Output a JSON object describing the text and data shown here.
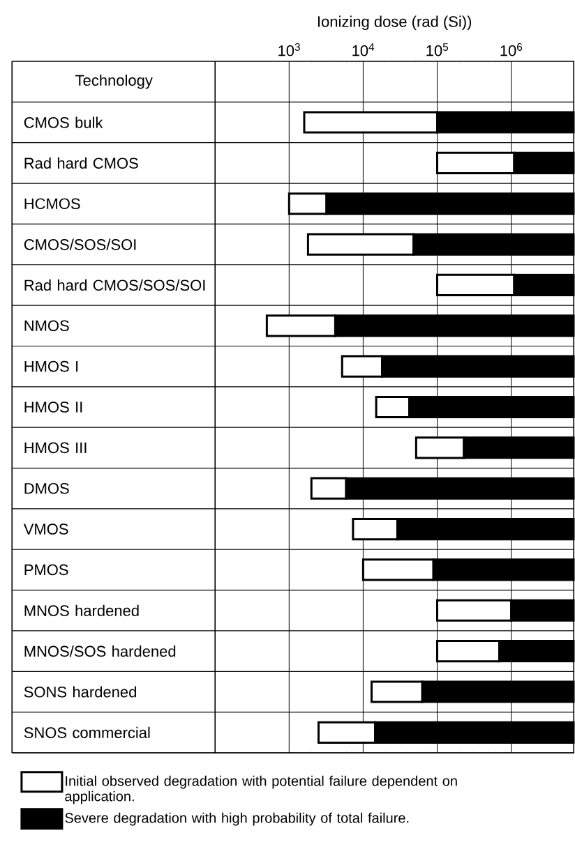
{
  "chart_data": {
    "type": "bar",
    "orientation": "horizontal",
    "xlabel": "Ionizing dose (rad (Si))",
    "ylabel": "Technology",
    "categories": [
      "CMOS bulk",
      "Rad hard CMOS",
      "HCMOS",
      "CMOS/SOS/SOI",
      "Rad hard CMOS/SOS/SOI",
      "NMOS",
      "HMOS I",
      "HMOS II",
      "HMOS III",
      "DMOS",
      "VMOS",
      "PMOS",
      "MNOS hardened",
      "MNOS/SOS hardened",
      "SONS hardened",
      "SNOS commercial"
    ],
    "series": [
      {
        "name": "Initial observed degradation with potential failure dependent on application.",
        "color": "#ffffff",
        "base": [
          1600,
          100000,
          1000,
          1800,
          100000,
          500,
          5200,
          15000,
          52000,
          2000,
          7300,
          10000,
          100000,
          100000,
          13000,
          2500
        ],
        "values": [
          98400,
          1000000,
          2200,
          46200,
          1000000,
          3700,
          12800,
          27000,
          178000,
          3900,
          21700,
          79000,
          900000,
          590000,
          50000,
          12000
        ]
      },
      {
        "name": "Severe degradation with high probability of total failure.",
        "color": "#000000",
        "base": [
          100000,
          1100000,
          3200,
          48000,
          1100000,
          4200,
          18000,
          42000,
          230000,
          5900,
          29000,
          89000,
          1000000,
          690000,
          63000,
          14500
        ],
        "values": [
          6900000,
          5900000,
          6996800,
          6952000,
          5900000,
          6995800,
          6982000,
          6958000,
          6770000,
          6994100,
          6971000,
          6911000,
          6000000,
          6310000,
          6937000,
          6985500
        ]
      }
    ],
    "log": "x",
    "xlim": [
      100,
      7000000
    ],
    "xticks": [
      {
        "value": 1000,
        "label": "10$^{3}$"
      },
      {
        "value": 10000,
        "label": "10$^{4}$"
      },
      {
        "value": 100000,
        "label": "10$^{5}$"
      },
      {
        "value": 1000000,
        "label": "10$^{6}$"
      }
    ],
    "grid": "x",
    "legend": "bottom"
  }
}
